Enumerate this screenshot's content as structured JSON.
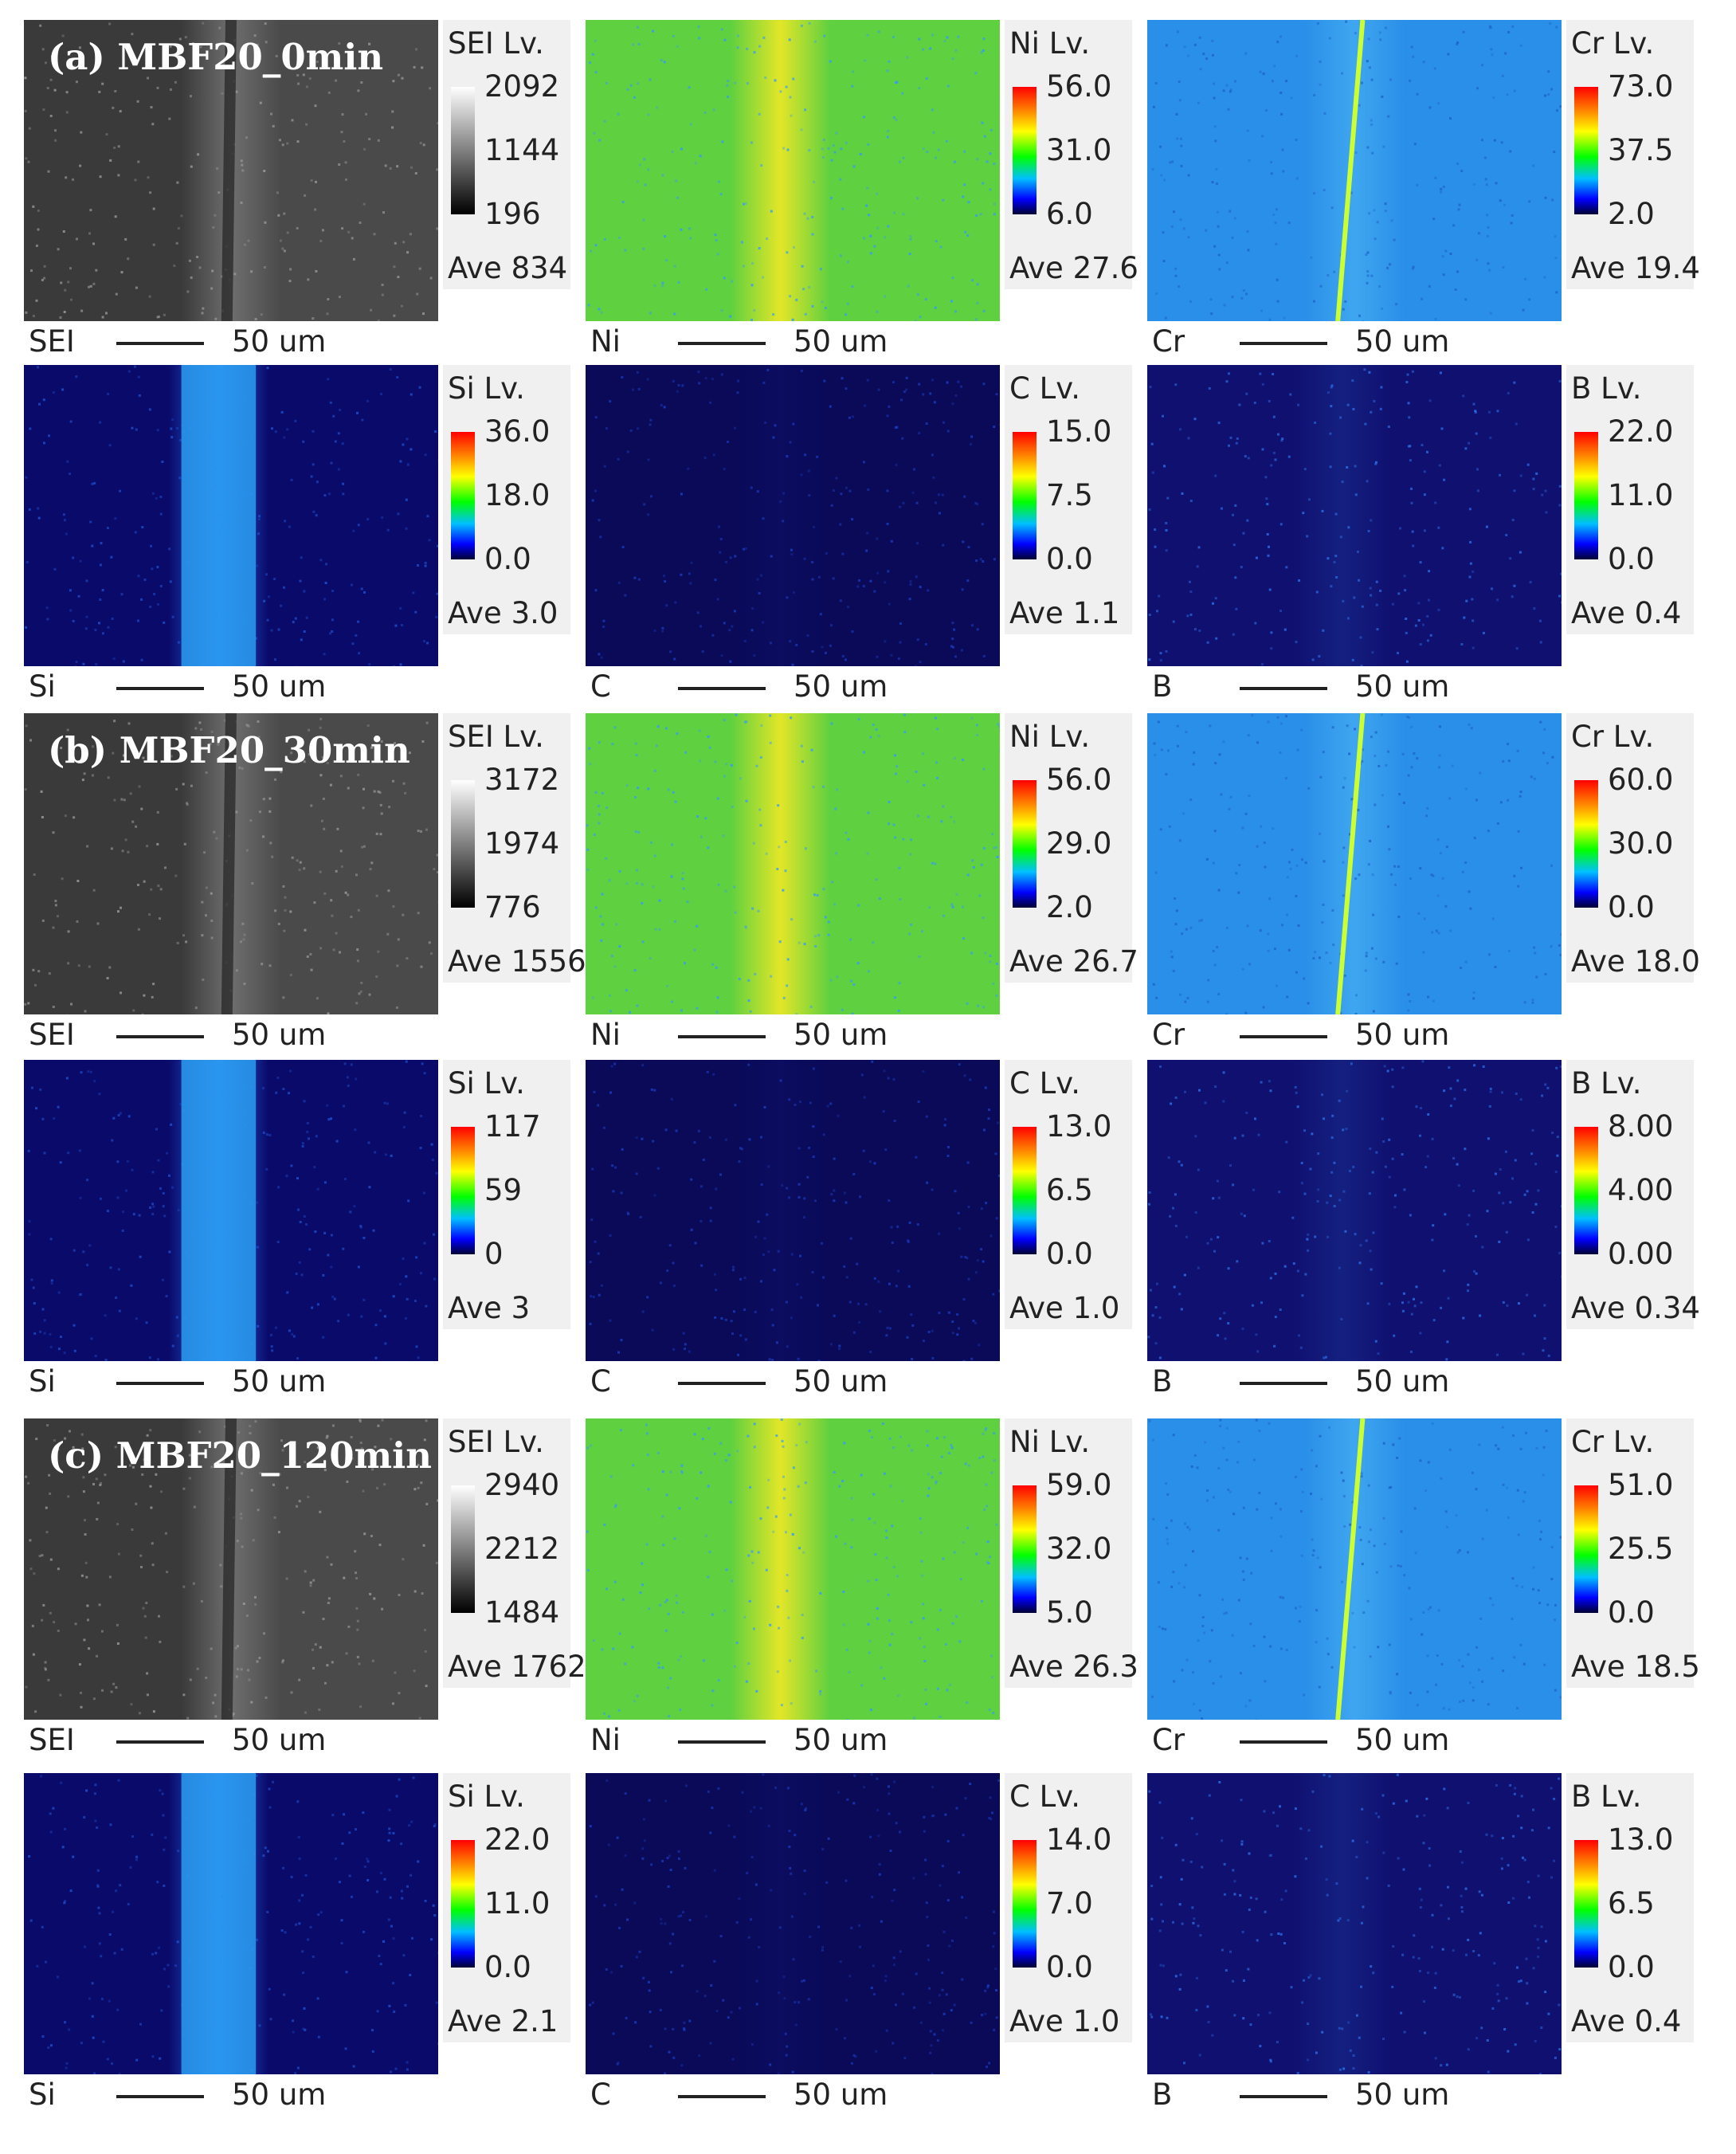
{
  "rows": [
    {
      "title": "(a) MBF20_0min",
      "maps": [
        {
          "element": "SEI",
          "kind": "gray",
          "ticks": [
            "2092",
            "1144",
            "196"
          ],
          "ave": "Ave 834",
          "scale": "50 um"
        },
        {
          "element": "Ni",
          "kind": "color",
          "ticks": [
            "56.0",
            "31.0",
            "6.0"
          ],
          "ave": "Ave 27.6",
          "scale": "50 um"
        },
        {
          "element": "Cr",
          "kind": "color",
          "ticks": [
            "73.0",
            "37.5",
            "2.0"
          ],
          "ave": "Ave 19.4",
          "scale": "50 um"
        }
      ]
    },
    {
      "title": "",
      "maps": [
        {
          "element": "Si",
          "kind": "color",
          "ticks": [
            "36.0",
            "18.0",
            "0.0"
          ],
          "ave": "Ave 3.0",
          "scale": "50 um"
        },
        {
          "element": "C",
          "kind": "color",
          "ticks": [
            "15.0",
            "7.5",
            "0.0"
          ],
          "ave": "Ave 1.1",
          "scale": "50 um"
        },
        {
          "element": "B",
          "kind": "color",
          "ticks": [
            "22.0",
            "11.0",
            "0.0"
          ],
          "ave": "Ave 0.4",
          "scale": "50 um"
        }
      ]
    },
    {
      "title": "(b) MBF20_30min",
      "maps": [
        {
          "element": "SEI",
          "kind": "gray",
          "ticks": [
            "3172",
            "1974",
            "776"
          ],
          "ave": "Ave 1556",
          "scale": "50 um"
        },
        {
          "element": "Ni",
          "kind": "color",
          "ticks": [
            "56.0",
            "29.0",
            "2.0"
          ],
          "ave": "Ave 26.7",
          "scale": "50 um"
        },
        {
          "element": "Cr",
          "kind": "color",
          "ticks": [
            "60.0",
            "30.0",
            "0.0"
          ],
          "ave": "Ave 18.0",
          "scale": "50 um"
        }
      ]
    },
    {
      "title": "",
      "maps": [
        {
          "element": "Si",
          "kind": "color",
          "ticks": [
            "117",
            "59",
            "0"
          ],
          "ave": "Ave 3",
          "scale": "50 um"
        },
        {
          "element": "C",
          "kind": "color",
          "ticks": [
            "13.0",
            "6.5",
            "0.0"
          ],
          "ave": "Ave 1.0",
          "scale": "50 um"
        },
        {
          "element": "B",
          "kind": "color",
          "ticks": [
            "8.00",
            "4.00",
            "0.00"
          ],
          "ave": "Ave 0.34",
          "scale": "50 um"
        }
      ]
    },
    {
      "title": "(c) MBF20_120min",
      "maps": [
        {
          "element": "SEI",
          "kind": "gray",
          "ticks": [
            "2940",
            "2212",
            "1484"
          ],
          "ave": "Ave 1762",
          "scale": "50 um"
        },
        {
          "element": "Ni",
          "kind": "color",
          "ticks": [
            "59.0",
            "32.0",
            "5.0"
          ],
          "ave": "Ave 26.3",
          "scale": "50 um"
        },
        {
          "element": "Cr",
          "kind": "color",
          "ticks": [
            "51.0",
            "25.5",
            "0.0"
          ],
          "ave": "Ave 18.5",
          "scale": "50 um"
        }
      ]
    },
    {
      "title": "",
      "maps": [
        {
          "element": "Si",
          "kind": "color",
          "ticks": [
            "22.0",
            "11.0",
            "0.0"
          ],
          "ave": "Ave 2.1",
          "scale": "50 um"
        },
        {
          "element": "C",
          "kind": "color",
          "ticks": [
            "14.0",
            "7.0",
            "0.0"
          ],
          "ave": "Ave 1.0",
          "scale": "50 um"
        },
        {
          "element": "B",
          "kind": "color",
          "ticks": [
            "13.0",
            "6.5",
            "0.0"
          ],
          "ave": "Ave 0.4",
          "scale": "50 um"
        }
      ]
    }
  ],
  "lv_suffix": "Lv."
}
